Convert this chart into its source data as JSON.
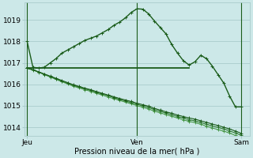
{
  "bg_color": "#cce8e8",
  "grid_color": "#aacccc",
  "line_color_dark": "#1a5c1a",
  "line_color_mid": "#2d7a2d",
  "line_color_light": "#4a9a4a",
  "ylabel_ticks": [
    1014,
    1015,
    1016,
    1017,
    1018,
    1019
  ],
  "ylim": [
    1013.6,
    1019.8
  ],
  "xlim": [
    -0.5,
    38.5
  ],
  "xlabel": "Pression niveau de la mer( hPa )",
  "day_labels": [
    "Jeu",
    "Ven",
    "Sam"
  ],
  "day_positions": [
    0,
    19,
    37
  ],
  "tick_fontsize": 6.5,
  "line1_x": [
    0,
    1,
    2,
    3,
    4,
    5,
    6,
    7,
    8,
    9,
    10,
    11,
    12,
    13,
    14,
    15,
    16,
    17,
    18,
    19,
    20,
    21,
    22,
    23,
    24,
    25,
    26,
    27,
    28,
    29,
    30,
    31,
    32,
    33,
    34,
    35,
    36,
    37
  ],
  "line1_y": [
    1018.0,
    1016.8,
    1016.75,
    1016.8,
    1017.0,
    1017.2,
    1017.45,
    1017.6,
    1017.75,
    1017.9,
    1018.05,
    1018.15,
    1018.25,
    1018.4,
    1018.55,
    1018.75,
    1018.9,
    1019.1,
    1019.35,
    1019.52,
    1019.5,
    1019.28,
    1018.95,
    1018.65,
    1018.35,
    1017.85,
    1017.45,
    1017.1,
    1016.9,
    1017.05,
    1017.35,
    1017.2,
    1016.85,
    1016.45,
    1016.05,
    1015.45,
    1014.95,
    1014.95
  ],
  "flat_x": [
    0,
    1,
    2,
    3,
    4,
    5,
    6,
    7,
    8,
    9,
    10,
    11,
    12,
    13,
    14,
    15,
    16,
    17,
    18,
    19,
    20,
    21,
    22,
    23,
    24,
    25,
    26,
    27,
    28
  ],
  "flat_y": [
    1016.75,
    1016.75,
    1016.75,
    1016.75,
    1016.75,
    1016.75,
    1016.75,
    1016.75,
    1016.75,
    1016.75,
    1016.75,
    1016.75,
    1016.75,
    1016.75,
    1016.75,
    1016.75,
    1016.75,
    1016.75,
    1016.75,
    1016.75,
    1016.75,
    1016.75,
    1016.75,
    1016.75,
    1016.75,
    1016.75,
    1016.75,
    1016.75,
    1016.75
  ],
  "line2_x": [
    0,
    1,
    2,
    3,
    4,
    5,
    6,
    7,
    8,
    9,
    10,
    11,
    12,
    13,
    14,
    15,
    16,
    17,
    18,
    19,
    20,
    21,
    22,
    23,
    24,
    25,
    26,
    27,
    28,
    29,
    30,
    31,
    32,
    33,
    34,
    35,
    36,
    37
  ],
  "line2_y": [
    1016.75,
    1016.68,
    1016.58,
    1016.48,
    1016.38,
    1016.28,
    1016.18,
    1016.08,
    1015.98,
    1015.9,
    1015.82,
    1015.75,
    1015.66,
    1015.58,
    1015.5,
    1015.42,
    1015.34,
    1015.27,
    1015.2,
    1015.12,
    1015.05,
    1014.98,
    1014.88,
    1014.8,
    1014.72,
    1014.65,
    1014.57,
    1014.5,
    1014.43,
    1014.38,
    1014.3,
    1014.23,
    1014.15,
    1014.08,
    1014.0,
    1013.92,
    1013.82,
    1013.72
  ],
  "line3_y": [
    1016.75,
    1016.68,
    1016.57,
    1016.47,
    1016.36,
    1016.26,
    1016.15,
    1016.05,
    1015.95,
    1015.87,
    1015.79,
    1015.72,
    1015.62,
    1015.55,
    1015.47,
    1015.38,
    1015.3,
    1015.22,
    1015.15,
    1015.07,
    1014.99,
    1014.92,
    1014.82,
    1014.74,
    1014.66,
    1014.58,
    1014.5,
    1014.43,
    1014.35,
    1014.3,
    1014.22,
    1014.14,
    1014.06,
    1013.99,
    1013.92,
    1013.83,
    1013.73,
    1013.63
  ],
  "line4_y": [
    1016.75,
    1016.67,
    1016.56,
    1016.45,
    1016.34,
    1016.23,
    1016.12,
    1016.02,
    1015.91,
    1015.83,
    1015.75,
    1015.67,
    1015.58,
    1015.5,
    1015.41,
    1015.33,
    1015.25,
    1015.17,
    1015.09,
    1015.01,
    1014.93,
    1014.85,
    1014.75,
    1014.67,
    1014.59,
    1014.51,
    1014.43,
    1014.35,
    1014.27,
    1014.22,
    1014.14,
    1014.05,
    1013.97,
    1013.89,
    1013.82,
    1013.73,
    1013.62,
    1013.52
  ]
}
